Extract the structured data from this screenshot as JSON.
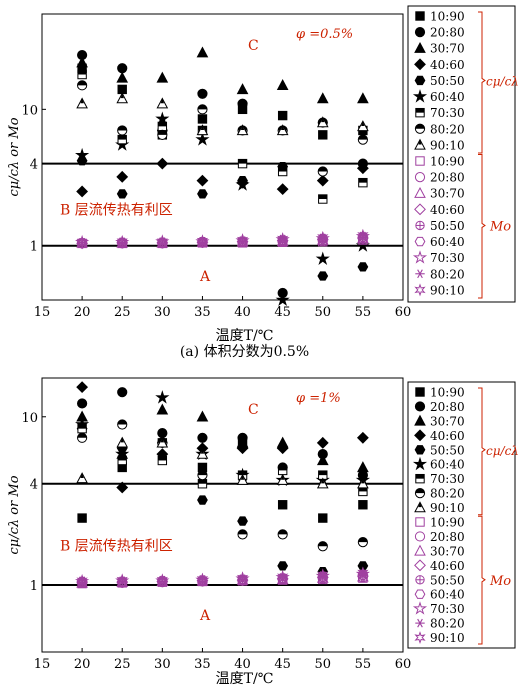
{
  "chart_data": [
    {
      "type": "scatter",
      "xlabel": "温度T/℃",
      "ylabel": "cμ/cλ or Mo",
      "caption": "(a) 体积分数为0.5%",
      "phi_label": "φ =0.5%",
      "region_labels": {
        "C": "C",
        "B": "B 层流传热有利区",
        "A": "A"
      },
      "xlim": [
        15,
        60
      ],
      "ylim": [
        0.4,
        50
      ],
      "yscale": "log",
      "x_ticks": [
        15,
        20,
        25,
        30,
        35,
        40,
        45,
        50,
        55,
        60
      ],
      "y_ticks": [
        1,
        4,
        10
      ],
      "reference_lines": [
        1,
        4
      ],
      "group_labels": {
        "ratio": "cμ/cλ",
        "mo": "Mo"
      },
      "legend": [
        "10:90",
        "20:80",
        "30:70",
        "40:60",
        "50:50",
        "60:40",
        "70:30",
        "80:20",
        "90:10"
      ],
      "x": [
        20,
        25,
        30,
        35,
        40,
        45,
        50,
        55
      ],
      "series": [
        {
          "name": "10:90",
          "group": "ratio",
          "values": [
            20,
            14,
            6.5,
            8.5,
            10,
            9,
            6.5,
            7
          ]
        },
        {
          "name": "20:80",
          "group": "ratio",
          "values": [
            25,
            20,
            7,
            13,
            11,
            0.45,
            8,
            4
          ]
        },
        {
          "name": "30:70",
          "group": "ratio",
          "values": [
            22,
            17,
            17,
            26,
            14,
            15,
            12,
            12
          ]
        },
        {
          "name": "40:60",
          "group": "ratio",
          "values": [
            2.5,
            3.2,
            4,
            3,
            2.9,
            2.6,
            3,
            3.7
          ]
        },
        {
          "name": "50:50",
          "group": "ratio",
          "values": [
            4.2,
            2.4,
            7,
            2.4,
            3,
            3.8,
            0.6,
            0.7
          ]
        },
        {
          "name": "60:40",
          "group": "ratio",
          "values": [
            4.6,
            5.5,
            8.5,
            6,
            2.8,
            0.4,
            0.8,
            1
          ]
        },
        {
          "name": "70:30",
          "group": "ratio",
          "values": [
            18,
            6,
            7.5,
            7,
            4,
            3.5,
            2.2,
            2.9
          ]
        },
        {
          "name": "80:20",
          "group": "ratio",
          "values": [
            15,
            7,
            6.5,
            10,
            7,
            7,
            3.5,
            6
          ]
        },
        {
          "name": "90:10",
          "group": "ratio",
          "values": [
            11,
            12,
            11,
            7,
            7,
            7,
            8,
            7.5
          ]
        },
        {
          "name": "10:90",
          "group": "mo",
          "values": [
            1.04,
            1.04,
            1.04,
            1.05,
            1.05,
            1.06,
            1.07,
            1.1
          ]
        },
        {
          "name": "20:80",
          "group": "mo",
          "values": [
            1.04,
            1.04,
            1.04,
            1.05,
            1.06,
            1.07,
            1.08,
            1.12
          ]
        },
        {
          "name": "30:70",
          "group": "mo",
          "values": [
            1.05,
            1.05,
            1.05,
            1.06,
            1.07,
            1.08,
            1.1,
            1.13
          ]
        },
        {
          "name": "40:60",
          "group": "mo",
          "values": [
            1.04,
            1.05,
            1.05,
            1.06,
            1.07,
            1.09,
            1.11,
            1.14
          ]
        },
        {
          "name": "50:50",
          "group": "mo",
          "values": [
            1.05,
            1.05,
            1.06,
            1.06,
            1.08,
            1.1,
            1.12,
            1.15
          ]
        },
        {
          "name": "60:40",
          "group": "mo",
          "values": [
            1.05,
            1.06,
            1.06,
            1.07,
            1.08,
            1.1,
            1.13,
            1.16
          ]
        },
        {
          "name": "70:30",
          "group": "mo",
          "values": [
            1.06,
            1.06,
            1.07,
            1.07,
            1.09,
            1.11,
            1.13,
            1.17
          ]
        },
        {
          "name": "80:20",
          "group": "mo",
          "values": [
            1.06,
            1.06,
            1.07,
            1.08,
            1.09,
            1.12,
            1.14,
            1.18
          ]
        },
        {
          "name": "90:10",
          "group": "mo",
          "values": [
            1.06,
            1.07,
            1.07,
            1.08,
            1.1,
            1.12,
            1.15,
            1.19
          ]
        }
      ]
    },
    {
      "type": "scatter",
      "xlabel": "温度T/℃",
      "ylabel": "cμ/cλ or Mo",
      "caption": "",
      "phi_label": "φ =1%",
      "region_labels": {
        "C": "C",
        "B": "B 层流传热有利区",
        "A": "A"
      },
      "xlim": [
        15,
        60
      ],
      "ylim": [
        0.4,
        17
      ],
      "yscale": "log",
      "x_ticks": [
        15,
        20,
        25,
        30,
        35,
        40,
        45,
        50,
        55,
        60
      ],
      "y_ticks": [
        1,
        4,
        10
      ],
      "reference_lines": [
        1,
        4
      ],
      "group_labels": {
        "ratio": "cμ/cλ",
        "mo": "Mo"
      },
      "legend": [
        "10:90",
        "20:80",
        "30:70",
        "40:60",
        "50:50",
        "60:40",
        "70:30",
        "80:20",
        "90:10"
      ],
      "x": [
        20,
        25,
        30,
        35,
        40,
        45,
        50,
        55
      ],
      "series": [
        {
          "name": "10:90",
          "group": "ratio",
          "values": [
            2.5,
            5,
            7,
            5,
            7,
            3,
            2.5,
            3
          ]
        },
        {
          "name": "20:80",
          "group": "ratio",
          "values": [
            12,
            14,
            8,
            7.5,
            7.5,
            5,
            6,
            4.5
          ]
        },
        {
          "name": "30:70",
          "group": "ratio",
          "values": [
            10,
            6,
            11,
            10,
            7,
            7,
            5.5,
            5
          ]
        },
        {
          "name": "40:60",
          "group": "ratio",
          "values": [
            15,
            3.8,
            6,
            6.5,
            6.5,
            6.5,
            7,
            7.5
          ]
        },
        {
          "name": "50:50",
          "group": "ratio",
          "values": [
            8.5,
            6.5,
            7,
            3.2,
            2.4,
            1.3,
            1.2,
            1.3
          ]
        },
        {
          "name": "60:40",
          "group": "ratio",
          "values": [
            9,
            6,
            13,
            6,
            4.5,
            4.2,
            4.2,
            4.2
          ]
        },
        {
          "name": "70:30",
          "group": "ratio",
          "values": [
            8.5,
            5.5,
            5.5,
            4,
            4.5,
            4.8,
            4.5,
            3.6
          ]
        },
        {
          "name": "80:20",
          "group": "ratio",
          "values": [
            7.5,
            9,
            7,
            4.5,
            2,
            2,
            1.7,
            1.8
          ]
        },
        {
          "name": "90:10",
          "group": "ratio",
          "values": [
            4.3,
            7,
            7,
            6,
            4.2,
            4.2,
            4,
            4
          ]
        },
        {
          "name": "10:90",
          "group": "mo",
          "values": [
            1.02,
            1.03,
            1.04,
            1.05,
            1.06,
            1.07,
            1.08,
            1.1
          ]
        },
        {
          "name": "20:80",
          "group": "mo",
          "values": [
            1.03,
            1.03,
            1.04,
            1.05,
            1.06,
            1.08,
            1.09,
            1.11
          ]
        },
        {
          "name": "30:70",
          "group": "mo",
          "values": [
            1.03,
            1.04,
            1.05,
            1.06,
            1.07,
            1.08,
            1.1,
            1.12
          ]
        },
        {
          "name": "40:60",
          "group": "mo",
          "values": [
            1.04,
            1.04,
            1.05,
            1.06,
            1.07,
            1.09,
            1.11,
            1.13
          ]
        },
        {
          "name": "50:50",
          "group": "mo",
          "values": [
            1.04,
            1.05,
            1.05,
            1.06,
            1.08,
            1.09,
            1.11,
            1.14
          ]
        },
        {
          "name": "60:40",
          "group": "mo",
          "values": [
            1.05,
            1.05,
            1.06,
            1.07,
            1.08,
            1.1,
            1.12,
            1.15
          ]
        },
        {
          "name": "70:30",
          "group": "mo",
          "values": [
            1.05,
            1.06,
            1.06,
            1.07,
            1.09,
            1.11,
            1.13,
            1.16
          ]
        },
        {
          "name": "80:20",
          "group": "mo",
          "values": [
            1.06,
            1.06,
            1.07,
            1.08,
            1.09,
            1.11,
            1.14,
            1.17
          ]
        },
        {
          "name": "90:10",
          "group": "mo",
          "values": [
            1.06,
            1.07,
            1.07,
            1.08,
            1.1,
            1.12,
            1.15,
            1.18
          ]
        }
      ]
    }
  ]
}
